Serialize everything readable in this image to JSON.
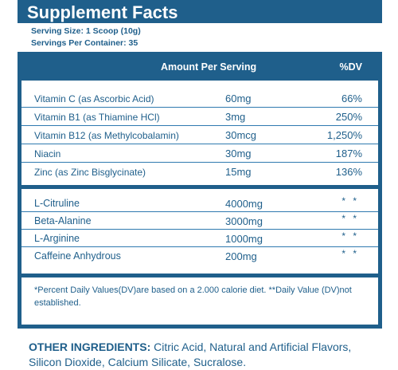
{
  "title": "Supplement Facts",
  "serving_size": "Serving Size: 1 Scoop (10g)",
  "servings_per_container": "Servings Per Container: 35",
  "columns": {
    "amount": "Amount Per Serving",
    "dv": "%DV"
  },
  "vitamins": [
    {
      "name": "Vitamin C (as Ascorbic Acid)",
      "amount": "60mg",
      "dv": "66%"
    },
    {
      "name": "Vitamin B1 (as Thiamine HCl)",
      "amount": "3mg",
      "dv": "250%"
    },
    {
      "name": "Vitamin B12 (as Methylcobalamin)",
      "amount": "30mcg",
      "dv": "1,250%"
    },
    {
      "name": "Niacin",
      "amount": "30mg",
      "dv": "187%"
    },
    {
      "name": "Zinc (as Zinc Bisglycinate)",
      "amount": "15mg",
      "dv": "136%"
    }
  ],
  "actives": [
    {
      "name": "L-Citruline",
      "amount": "4000mg",
      "dv": "* *"
    },
    {
      "name": "Beta-Alanine",
      "amount": "3000mg",
      "dv": "* *"
    },
    {
      "name": "L-Arginine",
      "amount": "1000mg",
      "dv": "* *"
    },
    {
      "name": "Caffeine Anhydrous",
      "amount": "200mg",
      "dv": "* *"
    }
  ],
  "footnote": "*Percent Daily Values(DV)are based on a 2.000 calorie diet. **Daily Value (DV)not established.",
  "other_ingredients": {
    "label": "OTHER INGREDIENTS:",
    "text": "Citric Acid, Natural and Artificial Flavors, Silicon Dioxide, Calcium Silicate, Sucralose."
  }
}
